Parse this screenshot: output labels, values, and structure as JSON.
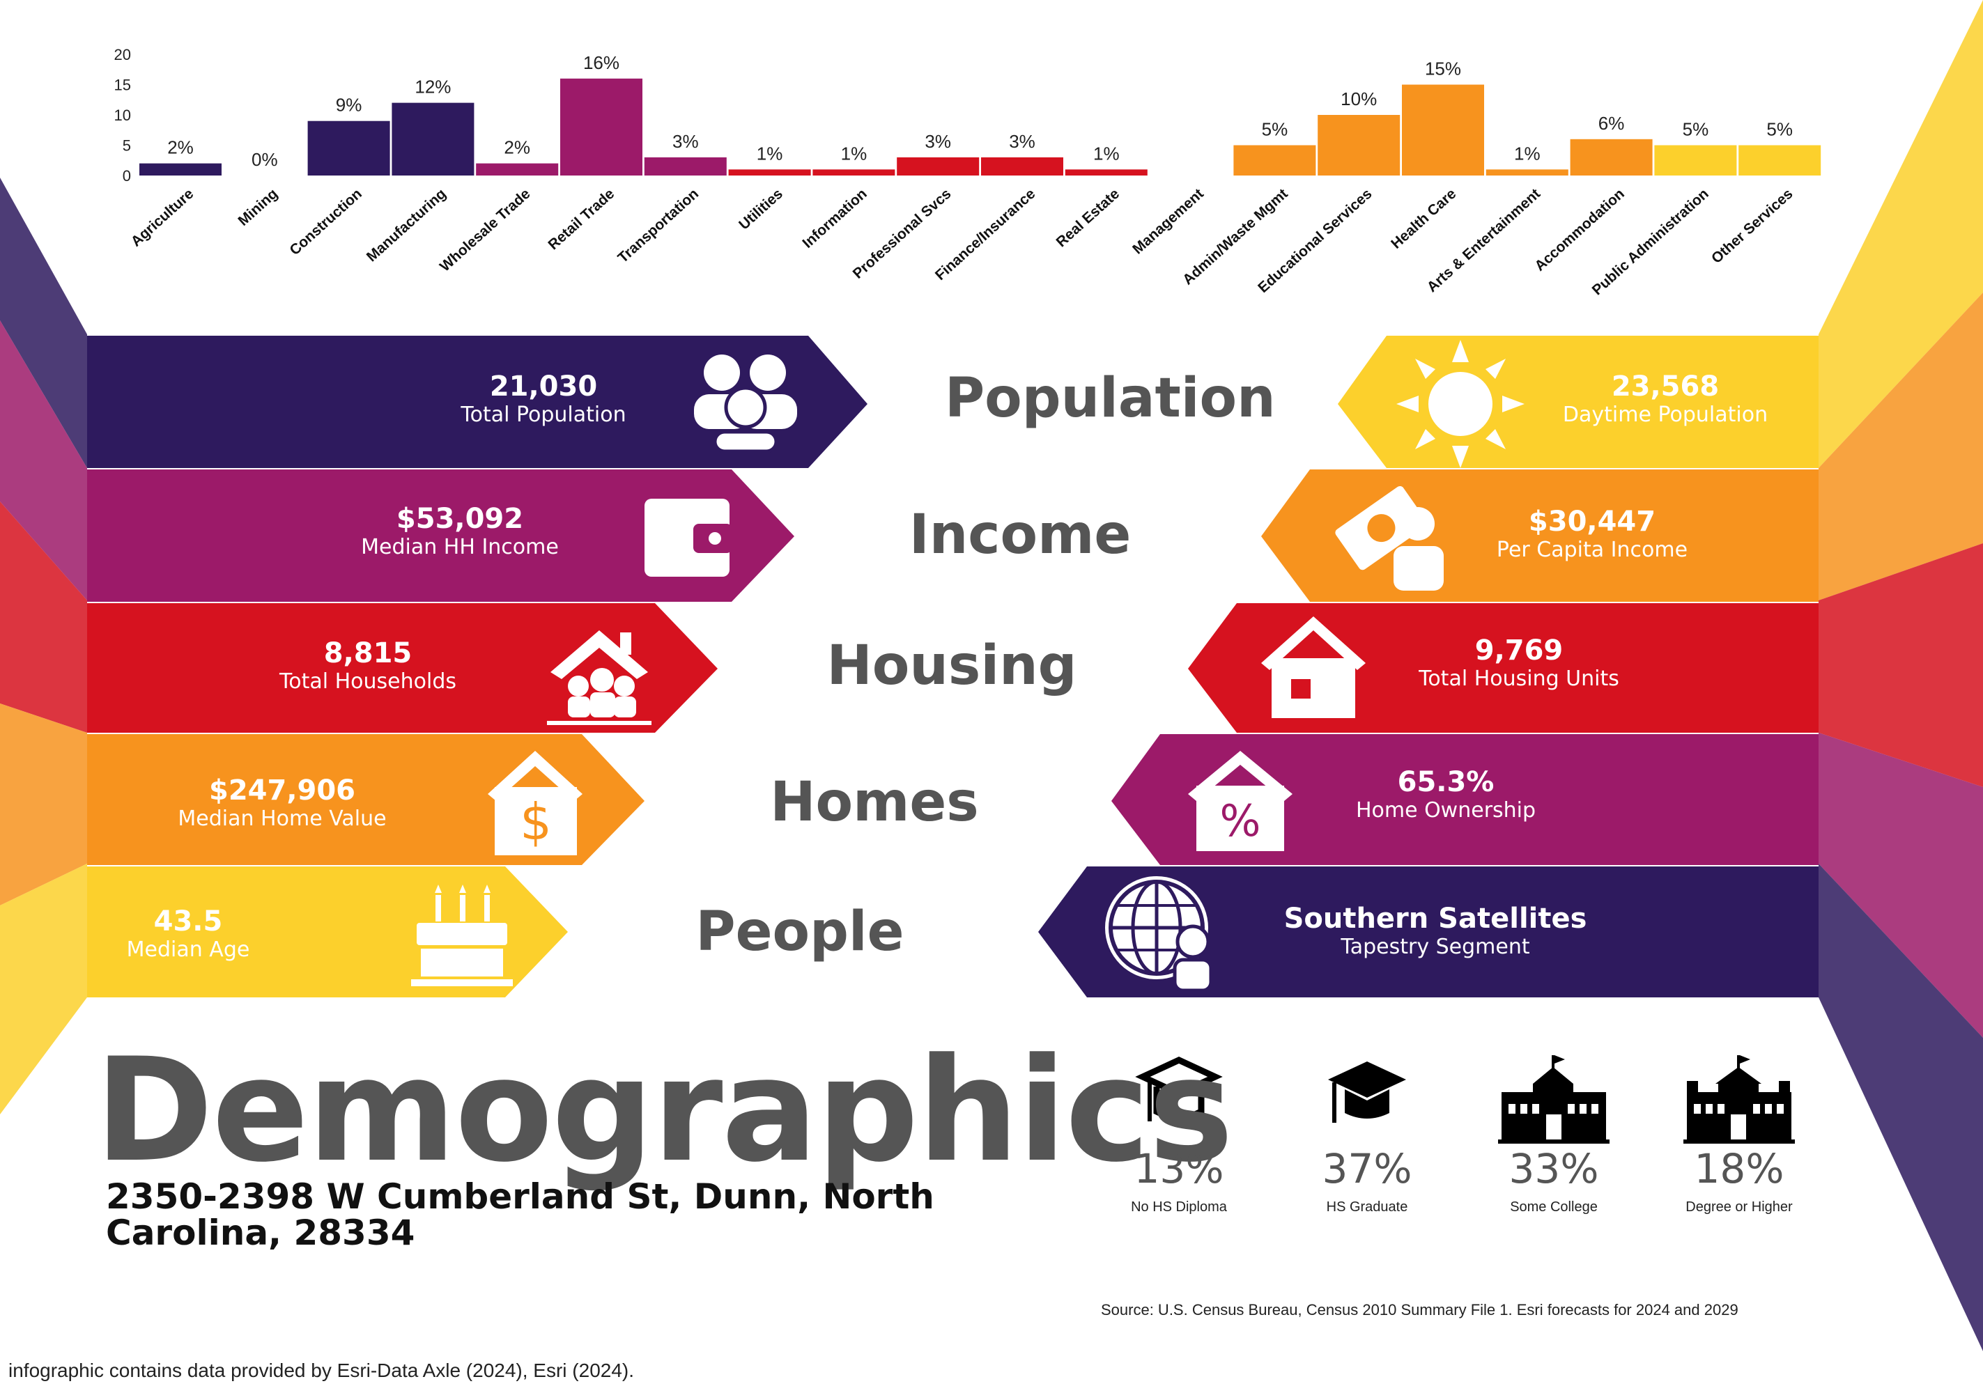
{
  "title": "Demographics",
  "address": "2350-2398 W Cumberland St, Dunn, North Carolina, 28334",
  "categories": {
    "population": "Population",
    "income": "Income",
    "housing": "Housing",
    "homes": "Homes",
    "people": "People"
  },
  "stats": {
    "total_population": {
      "value": "21,030",
      "label": "Total Population"
    },
    "median_hh_income": {
      "value": "$53,092",
      "label": "Median HH Income"
    },
    "total_households": {
      "value": "8,815",
      "label": "Total Households"
    },
    "median_home_value": {
      "value": "$247,906",
      "label": "Median Home Value"
    },
    "median_age": {
      "value": "43.5",
      "label": "Median Age"
    },
    "daytime_population": {
      "value": "23,568",
      "label": "Daytime Population"
    },
    "per_capita_income": {
      "value": "$30,447",
      "label": "Per Capita Income"
    },
    "total_housing_units": {
      "value": "9,769",
      "label": "Total Housing Units"
    },
    "home_ownership": {
      "value": "65.3%",
      "label": "Home Ownership"
    },
    "tapestry_segment": {
      "value": "Southern Satellites",
      "label": "Tapestry Segment"
    }
  },
  "education": [
    {
      "percent": "13%",
      "label": "No HS Diploma"
    },
    {
      "percent": "37%",
      "label": "HS Graduate"
    },
    {
      "percent": "33%",
      "label": "Some College"
    },
    {
      "percent": "18%",
      "label": "Degree or Higher"
    }
  ],
  "source": "Source: U.S. Census Bureau, Census 2010 Summary File 1. Esri forecasts for 2024 and 2029",
  "credit": "infographic contains data provided by Esri-Data Axle (2024), Esri (2024).",
  "colors": {
    "navy": "#2e1a5e",
    "magenta": "#9c1a69",
    "red": "#d6121f",
    "orange": "#f7931e",
    "yellow": "#fcd02c"
  },
  "chart_data": {
    "type": "bar",
    "title": "",
    "xlabel": "",
    "ylabel": "",
    "ylim": [
      0,
      20
    ],
    "yticks": [
      0,
      5,
      10,
      15,
      20
    ],
    "grid": false,
    "categories": [
      "Agriculture",
      "Mining",
      "Construction",
      "Manufacturing",
      "Wholesale Trade",
      "Retail Trade",
      "Transportation",
      "Utilities",
      "Information",
      "Professional Svcs",
      "Finance/Insurance",
      "Real Estate",
      "Management",
      "Admin/Waste Mgmt",
      "Educational Services",
      "Health Care",
      "Arts & Entertainment",
      "Accommodation",
      "Public Administration",
      "Other Services"
    ],
    "values": [
      2,
      0,
      9,
      12,
      2,
      16,
      3,
      1,
      1,
      3,
      3,
      1,
      0,
      5,
      10,
      15,
      1,
      6,
      5,
      5
    ],
    "labels": [
      "2%",
      "0%",
      "9%",
      "12%",
      "2%",
      "16%",
      "3%",
      "1%",
      "1%",
      "3%",
      "3%",
      "1%",
      "",
      "5%",
      "10%",
      "15%",
      "1%",
      "6%",
      "5%",
      "5%"
    ],
    "bar_colors": [
      "#2e1a5e",
      "#2e1a5e",
      "#2e1a5e",
      "#2e1a5e",
      "#9c1a69",
      "#9c1a69",
      "#9c1a69",
      "#d6121f",
      "#d6121f",
      "#d6121f",
      "#d6121f",
      "#d6121f",
      "#f7931e",
      "#f7931e",
      "#f7931e",
      "#f7931e",
      "#f7931e",
      "#f7931e",
      "#fcd02c",
      "#fcd02c"
    ]
  }
}
